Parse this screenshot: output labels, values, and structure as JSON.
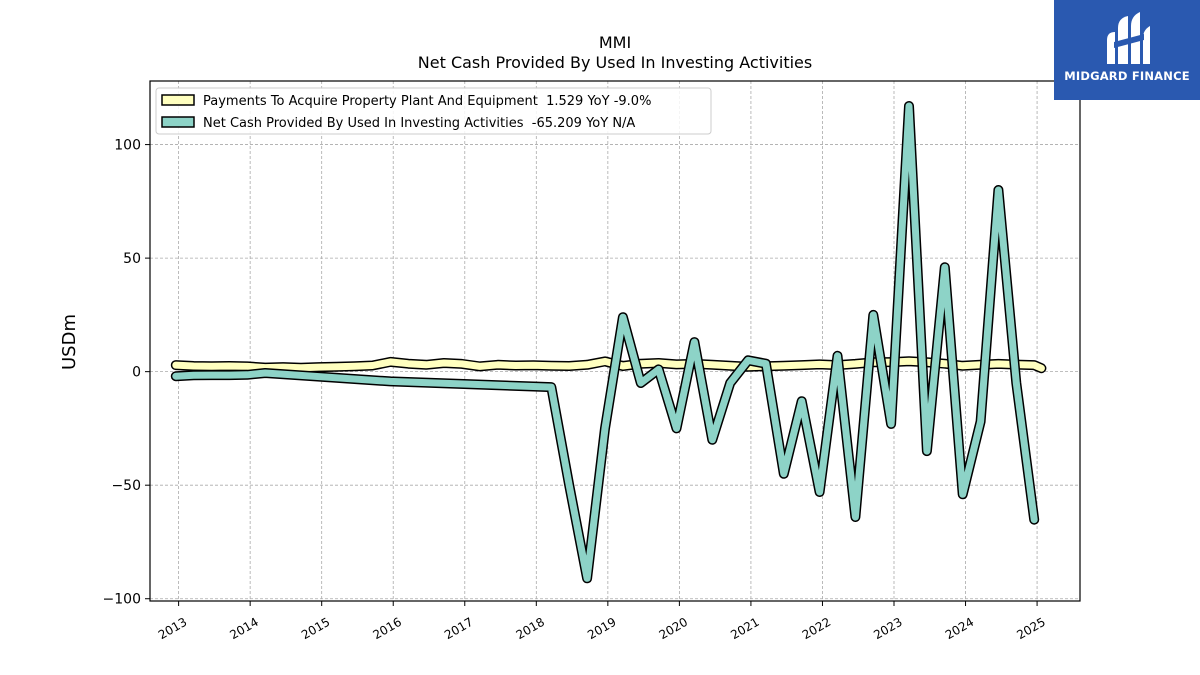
{
  "logo": {
    "name": "MIDGARD FINANCE"
  },
  "chart_data": {
    "type": "line",
    "title": "MMI",
    "subtitle": "Net Cash Provided By Used In Investing Activities",
    "ylabel": "USDm",
    "xlabel": "",
    "xlim": [
      2012.6,
      2025.6
    ],
    "ylim": [
      -101,
      128
    ],
    "x_ticks": [
      2013,
      2014,
      2015,
      2016,
      2017,
      2018,
      2019,
      2020,
      2021,
      2022,
      2023,
      2024,
      2025
    ],
    "y_ticks": [
      -100,
      -50,
      0,
      50,
      100
    ],
    "grid": true,
    "legend_position": "top-left",
    "series": [
      {
        "name": "Payments To Acquire Property Plant And Equipment  1.529 YoY -9.0%",
        "color": "#ffffbf",
        "width": 7,
        "points": [
          [
            2012.96,
            2.9
          ],
          [
            2013.21,
            2.5
          ],
          [
            2013.46,
            2.4
          ],
          [
            2013.71,
            2.5
          ],
          [
            2013.96,
            2.3
          ],
          [
            2014.21,
            1.8
          ],
          [
            2014.46,
            2.0
          ],
          [
            2014.71,
            1.7
          ],
          [
            2014.96,
            2.0
          ],
          [
            2015.21,
            2.2
          ],
          [
            2015.46,
            2.4
          ],
          [
            2015.71,
            2.7
          ],
          [
            2015.96,
            4.3
          ],
          [
            2016.21,
            3.5
          ],
          [
            2016.46,
            3.0
          ],
          [
            2016.71,
            3.8
          ],
          [
            2016.96,
            3.4
          ],
          [
            2017.21,
            2.3
          ],
          [
            2017.46,
            3.0
          ],
          [
            2017.71,
            2.7
          ],
          [
            2017.96,
            2.8
          ],
          [
            2018.21,
            2.6
          ],
          [
            2018.46,
            2.5
          ],
          [
            2018.71,
            3.0
          ],
          [
            2018.96,
            4.5
          ],
          [
            2019.21,
            2.5
          ],
          [
            2019.46,
            3.5
          ],
          [
            2019.71,
            3.8
          ],
          [
            2019.96,
            3.2
          ],
          [
            2020.21,
            3.4
          ],
          [
            2020.46,
            3.0
          ],
          [
            2020.71,
            2.6
          ],
          [
            2020.96,
            2.2
          ],
          [
            2021.21,
            2.4
          ],
          [
            2021.46,
            2.6
          ],
          [
            2021.71,
            2.9
          ],
          [
            2021.96,
            3.2
          ],
          [
            2022.21,
            2.9
          ],
          [
            2022.46,
            3.4
          ],
          [
            2022.71,
            4.1
          ],
          [
            2022.96,
            4.2
          ],
          [
            2023.21,
            4.6
          ],
          [
            2023.46,
            4.1
          ],
          [
            2023.71,
            3.5
          ],
          [
            2023.96,
            2.6
          ],
          [
            2024.21,
            3.0
          ],
          [
            2024.46,
            3.4
          ],
          [
            2024.71,
            3.1
          ],
          [
            2024.96,
            2.9
          ],
          [
            2025.06,
            1.5
          ]
        ]
      },
      {
        "name": "Net Cash Provided By Used In Investing Activities  -65.209 YoY N/A",
        "color": "#8dd3c7",
        "width": 7,
        "points": [
          [
            2012.96,
            -2.0
          ],
          [
            2013.21,
            -1.6
          ],
          [
            2013.46,
            -1.5
          ],
          [
            2013.71,
            -1.5
          ],
          [
            2013.96,
            -1.4
          ],
          [
            2014.21,
            -0.6
          ],
          [
            2015.96,
            -4.3
          ],
          [
            2018.21,
            -6.8
          ],
          [
            2018.46,
            -50.0
          ],
          [
            2018.71,
            -91.0
          ],
          [
            2018.96,
            -25.0
          ],
          [
            2019.21,
            24.0
          ],
          [
            2019.46,
            -5.0
          ],
          [
            2019.71,
            1.0
          ],
          [
            2019.96,
            -25.0
          ],
          [
            2020.21,
            13.0
          ],
          [
            2020.46,
            -30.0
          ],
          [
            2020.71,
            -5.0
          ],
          [
            2020.96,
            5.0
          ],
          [
            2021.21,
            3.5
          ],
          [
            2021.46,
            -45.0
          ],
          [
            2021.71,
            -13.0
          ],
          [
            2021.96,
            -53.0
          ],
          [
            2022.21,
            7.0
          ],
          [
            2022.46,
            -64.0
          ],
          [
            2022.71,
            25.0
          ],
          [
            2022.96,
            -23.0
          ],
          [
            2023.21,
            117.0
          ],
          [
            2023.46,
            -35.0
          ],
          [
            2023.71,
            46.0
          ],
          [
            2023.96,
            -54.0
          ],
          [
            2024.21,
            -22.0
          ],
          [
            2024.46,
            80.0
          ],
          [
            2024.71,
            -5.0
          ],
          [
            2024.96,
            -65.2
          ]
        ]
      }
    ]
  }
}
